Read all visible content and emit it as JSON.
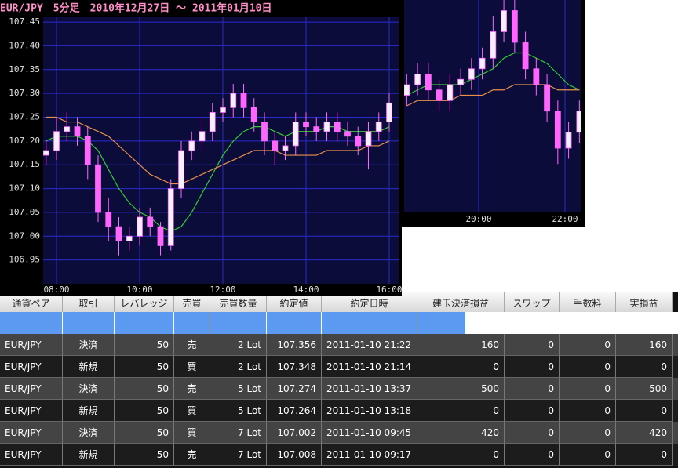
{
  "chart_data": [
    {
      "type": "candlestick",
      "title": "EUR/JPY　5分足　2010年12月27日 ～ 2011年01月10日",
      "x": [
        "07:45",
        "08:00",
        "08:15",
        "08:30",
        "08:45",
        "09:00",
        "09:15",
        "09:30",
        "09:45",
        "10:00",
        "10:15",
        "10:30",
        "10:45",
        "11:00",
        "11:15",
        "11:30",
        "11:45",
        "12:00",
        "12:15",
        "12:30",
        "12:45",
        "13:00",
        "13:15",
        "13:30",
        "13:45",
        "14:00",
        "14:15",
        "14:30",
        "14:45",
        "15:00",
        "15:15",
        "15:30",
        "15:45",
        "16:00"
      ],
      "open": [
        107.17,
        107.18,
        107.22,
        107.23,
        107.21,
        107.15,
        107.05,
        107.02,
        106.99,
        107.0,
        107.04,
        107.02,
        106.98,
        107.1,
        107.18,
        107.2,
        107.22,
        107.26,
        107.27,
        107.3,
        107.27,
        107.24,
        107.2,
        107.18,
        107.19,
        107.24,
        107.23,
        107.22,
        107.24,
        107.22,
        107.21,
        107.19,
        107.22,
        107.24
      ],
      "high": [
        107.2,
        107.25,
        107.26,
        107.25,
        107.23,
        107.17,
        107.08,
        107.04,
        107.02,
        107.06,
        107.06,
        107.03,
        107.12,
        107.2,
        107.22,
        107.25,
        107.28,
        107.29,
        107.32,
        107.32,
        107.29,
        107.26,
        107.22,
        107.21,
        107.26,
        107.26,
        107.25,
        107.26,
        107.26,
        107.24,
        107.23,
        107.24,
        107.26,
        107.3
      ],
      "low": [
        107.15,
        107.16,
        107.2,
        107.19,
        107.12,
        107.03,
        106.99,
        106.96,
        106.97,
        106.98,
        107.0,
        106.96,
        106.97,
        107.08,
        107.16,
        107.18,
        107.2,
        107.24,
        107.25,
        107.25,
        107.22,
        107.17,
        107.15,
        107.16,
        107.17,
        107.21,
        107.2,
        107.2,
        107.2,
        107.19,
        107.17,
        107.14,
        107.2,
        107.22
      ],
      "close": [
        107.18,
        107.22,
        107.23,
        107.21,
        107.15,
        107.05,
        107.02,
        106.99,
        107.0,
        107.04,
        107.02,
        106.98,
        107.1,
        107.18,
        107.2,
        107.22,
        107.26,
        107.27,
        107.3,
        107.27,
        107.24,
        107.2,
        107.18,
        107.19,
        107.24,
        107.23,
        107.22,
        107.24,
        107.22,
        107.21,
        107.19,
        107.22,
        107.24,
        107.28
      ],
      "series": [
        {
          "color": "#33cc33",
          "values": [
            107.2,
            107.21,
            107.21,
            107.21,
            107.2,
            107.18,
            107.14,
            107.1,
            107.07,
            107.05,
            107.04,
            107.02,
            107.01,
            107.02,
            107.05,
            107.09,
            107.13,
            107.17,
            107.2,
            107.22,
            107.23,
            107.23,
            107.22,
            107.21,
            107.22,
            107.22,
            107.22,
            107.23,
            107.23,
            107.22,
            107.22,
            107.22,
            107.22,
            107.23
          ]
        },
        {
          "color": "#e8904a",
          "values": [
            107.25,
            107.25,
            107.24,
            107.24,
            107.23,
            107.22,
            107.21,
            107.19,
            107.17,
            107.15,
            107.13,
            107.12,
            107.11,
            107.11,
            107.12,
            107.13,
            107.14,
            107.15,
            107.16,
            107.17,
            107.18,
            107.18,
            107.18,
            107.17,
            107.17,
            107.17,
            107.17,
            107.18,
            107.18,
            107.18,
            107.18,
            107.19,
            107.19,
            107.2
          ]
        }
      ],
      "ylim": [
        106.9,
        107.46
      ],
      "yticks": [
        106.95,
        {
          "value": 107.0,
          "label": "107.00"
        },
        107.05,
        {
          "value": 107.1,
          "label": "107.10"
        },
        107.15,
        {
          "value": 107.2,
          "label": "107.20"
        },
        107.25,
        {
          "value": 107.3,
          "label": "107.30"
        },
        107.35,
        {
          "value": 107.4,
          "label": "107.40"
        },
        107.45
      ],
      "xticks": [
        "08:00",
        "10:00",
        "12:00",
        "14:00",
        "16:00"
      ],
      "up_color": "#f4f0ff",
      "down_color": "#ff66ff",
      "grid": true
    },
    {
      "type": "candlestick",
      "x": [
        "18:20",
        "18:35",
        "18:50",
        "19:05",
        "19:20",
        "19:35",
        "19:50",
        "20:05",
        "20:20",
        "20:35",
        "20:50",
        "21:05",
        "21:20",
        "21:35",
        "21:50",
        "22:05",
        "22:20"
      ],
      "open": [
        107.28,
        107.3,
        107.32,
        107.29,
        107.27,
        107.3,
        107.31,
        107.33,
        107.35,
        107.4,
        107.44,
        107.38,
        107.33,
        107.3,
        107.25,
        107.18,
        107.21
      ],
      "high": [
        107.32,
        107.34,
        107.34,
        107.31,
        107.32,
        107.33,
        107.35,
        107.37,
        107.43,
        107.47,
        107.46,
        107.4,
        107.35,
        107.32,
        107.27,
        107.23,
        107.27
      ],
      "low": [
        107.26,
        107.28,
        107.27,
        107.25,
        107.25,
        107.28,
        107.29,
        107.31,
        107.33,
        107.38,
        107.36,
        107.31,
        107.28,
        107.23,
        107.15,
        107.16,
        107.19
      ],
      "close": [
        107.3,
        107.32,
        107.29,
        107.27,
        107.3,
        107.31,
        107.33,
        107.35,
        107.4,
        107.44,
        107.38,
        107.33,
        107.3,
        107.25,
        107.18,
        107.21,
        107.25
      ],
      "series": [
        {
          "color": "#33cc33",
          "values": [
            107.28,
            107.29,
            107.3,
            107.3,
            107.3,
            107.3,
            107.31,
            107.32,
            107.33,
            107.35,
            107.36,
            107.36,
            107.35,
            107.34,
            107.32,
            107.3,
            107.29
          ]
        },
        {
          "color": "#e8904a",
          "values": [
            107.26,
            107.27,
            107.27,
            107.27,
            107.27,
            107.28,
            107.28,
            107.28,
            107.29,
            107.29,
            107.3,
            107.3,
            107.3,
            107.3,
            107.29,
            107.29,
            107.29
          ]
        }
      ],
      "ylim": [
        107.06,
        107.46
      ],
      "xticks": [
        "20:00",
        "22:00"
      ],
      "up_color": "#f4f0ff",
      "down_color": "#ff66ff",
      "grid": true
    }
  ],
  "table": {
    "headers": [
      "通貨ペア",
      "取引",
      "レバレッジ",
      "売買",
      "売買数量",
      "約定値",
      "約定日時",
      "建玉決済損益",
      "スワップ",
      "手数料",
      "実損益"
    ],
    "rows": [
      [
        "EUR/JPY",
        "決済",
        50,
        "売",
        "2 Lot",
        107.356,
        "2011-01-10 21:22",
        160,
        0,
        0,
        160
      ],
      [
        "EUR/JPY",
        "新規",
        50,
        "買",
        "2 Lot",
        107.348,
        "2011-01-10 21:14",
        0,
        0,
        0,
        0
      ],
      [
        "EUR/JPY",
        "決済",
        50,
        "売",
        "5 Lot",
        107.274,
        "2011-01-10 13:37",
        500,
        0,
        0,
        500
      ],
      [
        "EUR/JPY",
        "新規",
        50,
        "買",
        "5 Lot",
        107.264,
        "2011-01-10 13:18",
        0,
        0,
        0,
        0
      ],
      [
        "EUR/JPY",
        "決済",
        50,
        "買",
        "7 Lot",
        107.002,
        "2011-01-10 09:45",
        420,
        0,
        0,
        420
      ],
      [
        "EUR/JPY",
        "新規",
        50,
        "売",
        "7 Lot",
        107.008,
        "2011-01-10 09:17",
        0,
        0,
        0,
        0
      ]
    ]
  }
}
